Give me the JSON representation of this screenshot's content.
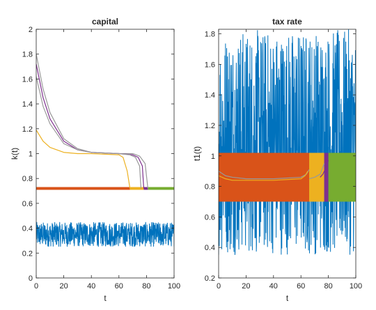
{
  "colors": {
    "blue": "#0072BD",
    "orange": "#D95319",
    "yellow": "#EDB120",
    "purple": "#7E2F8E",
    "green": "#77AC30",
    "gray": "#999999",
    "axis": "#262626"
  },
  "chart_data": [
    {
      "type": "line",
      "title": "capital",
      "xlabel": "t",
      "ylabel": "k(t)",
      "xlim": [
        0,
        100
      ],
      "ylim": [
        0,
        2
      ],
      "xticks": [
        0,
        20,
        40,
        60,
        80,
        100
      ],
      "yticks": [
        0,
        0.2,
        0.4,
        0.6,
        0.8,
        1,
        1.2,
        1.4,
        1.6,
        1.8,
        2
      ],
      "grid": false,
      "series": [
        {
          "color": "blue",
          "kind": "noise",
          "n": 700,
          "x_range": [
            0,
            100
          ],
          "y_range": [
            0.25,
            0.45
          ]
        },
        {
          "color": "orange",
          "kind": "segment",
          "x": [
            0,
            68
          ],
          "y": 0.72,
          "thick": true
        },
        {
          "color": "yellow",
          "kind": "segment",
          "x": [
            68,
            78
          ],
          "y": 0.72,
          "thick": true
        },
        {
          "color": "purple",
          "kind": "segment",
          "x": [
            78,
            81
          ],
          "y": 0.72,
          "thick": true
        },
        {
          "color": "green",
          "kind": "segment",
          "x": [
            81,
            100
          ],
          "y": 0.72,
          "thick": true
        },
        {
          "color": "gray",
          "kind": "path",
          "x": [
            0,
            5,
            10,
            20,
            30,
            40,
            60,
            70,
            75,
            79,
            81
          ],
          "y": [
            1.8,
            1.52,
            1.33,
            1.12,
            1.04,
            1.01,
            1.0,
            1.0,
            0.98,
            0.92,
            0.72
          ]
        },
        {
          "color": "purple",
          "kind": "path",
          "x": [
            0,
            5,
            10,
            20,
            30,
            40,
            60,
            70,
            74,
            77,
            78
          ],
          "y": [
            1.72,
            1.45,
            1.28,
            1.1,
            1.03,
            1.01,
            1.0,
            0.99,
            0.97,
            0.9,
            0.72
          ]
        },
        {
          "color": "gray",
          "kind": "path",
          "x": [
            0,
            5,
            10,
            20,
            30,
            40,
            60,
            68,
            72,
            75,
            76
          ],
          "y": [
            1.62,
            1.38,
            1.24,
            1.08,
            1.03,
            1.01,
            1.0,
            0.99,
            0.97,
            0.9,
            0.72
          ]
        },
        {
          "color": "yellow",
          "kind": "path",
          "x": [
            0,
            5,
            10,
            20,
            30,
            40,
            60,
            63,
            66,
            68
          ],
          "y": [
            1.19,
            1.1,
            1.05,
            1.01,
            1.0,
            1.0,
            0.99,
            0.97,
            0.86,
            0.72
          ]
        }
      ]
    },
    {
      "type": "line",
      "title": "tax rate",
      "xlabel": "t",
      "ylabel": "t1(t)",
      "xlim": [
        0,
        100
      ],
      "ylim": [
        0.2,
        1.83
      ],
      "xticks": [
        0,
        20,
        40,
        60,
        80,
        100
      ],
      "yticks": [
        0.2,
        0.4,
        0.6,
        0.8,
        1,
        1.2,
        1.4,
        1.6,
        1.8
      ],
      "grid": false,
      "series": [
        {
          "color": "blue",
          "kind": "noise",
          "n": 700,
          "x_range": [
            0,
            100
          ],
          "y_range": [
            0.35,
            1.83
          ]
        },
        {
          "color": "orange",
          "kind": "band",
          "x": [
            0,
            66
          ],
          "y": [
            0.7,
            1.02
          ]
        },
        {
          "color": "yellow",
          "kind": "band",
          "x": [
            66,
            77
          ],
          "y": [
            0.7,
            1.02
          ]
        },
        {
          "color": "purple",
          "kind": "band",
          "x": [
            77,
            80
          ],
          "y": [
            0.7,
            1.02
          ]
        },
        {
          "color": "green",
          "kind": "band",
          "x": [
            80,
            100
          ],
          "y": [
            0.7,
            1.02
          ]
        },
        {
          "color": "gray",
          "kind": "path",
          "x": [
            0,
            5,
            10,
            20,
            40,
            60,
            64,
            66
          ],
          "y": [
            0.9,
            0.87,
            0.86,
            0.85,
            0.85,
            0.86,
            0.88,
            0.91
          ]
        },
        {
          "color": "yellow",
          "kind": "path",
          "x": [
            0,
            5,
            10,
            20,
            40,
            60,
            63,
            65
          ],
          "y": [
            0.87,
            0.85,
            0.84,
            0.84,
            0.84,
            0.85,
            0.87,
            0.9
          ]
        },
        {
          "color": "gray",
          "kind": "path",
          "x": [
            66,
            70,
            74,
            77
          ],
          "y": [
            0.85,
            0.86,
            0.88,
            0.95
          ]
        },
        {
          "color": "purple",
          "kind": "path",
          "x": [
            74,
            76,
            78,
            80
          ],
          "y": [
            0.86,
            0.88,
            0.92,
            0.97
          ]
        }
      ]
    }
  ]
}
